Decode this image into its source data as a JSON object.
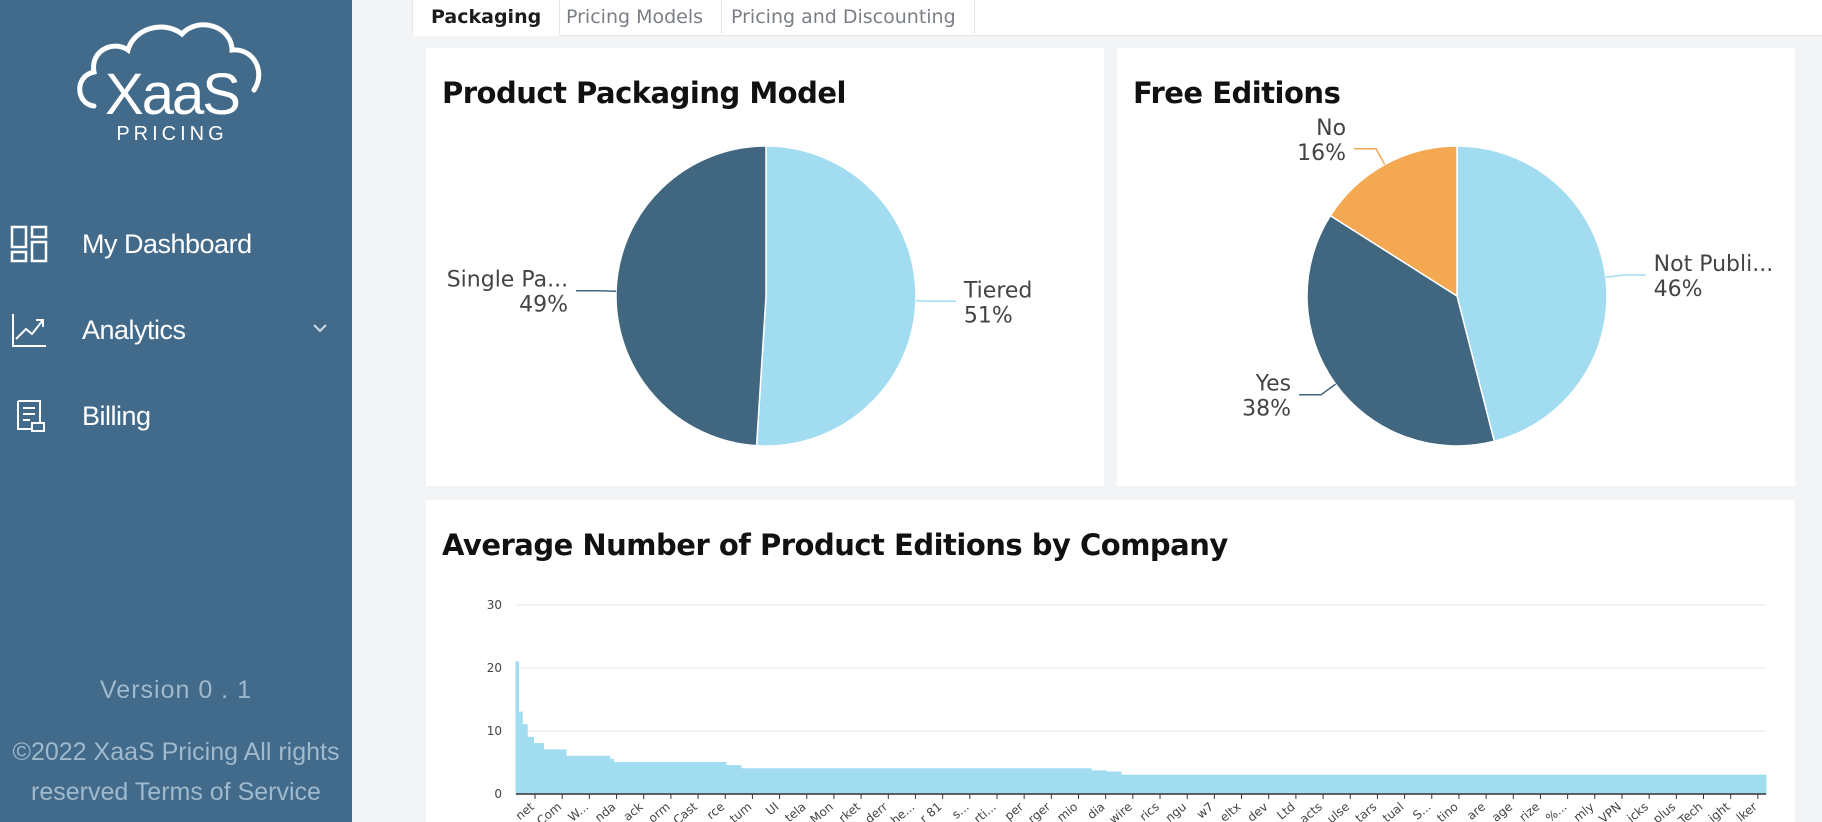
{
  "sidebar": {
    "logo": {
      "word": "XaaS",
      "sub": "PRICING"
    },
    "items": [
      {
        "label": "My Dashboard",
        "icon": "dashboard-icon"
      },
      {
        "label": "Analytics",
        "icon": "analytics-icon"
      },
      {
        "label": "Billing",
        "icon": "billing-icon"
      }
    ],
    "version": "Version 0 . 1",
    "copyright_line1": "©2022 XaaS Pricing All rights",
    "copyright_line2": "reserved Terms of Service"
  },
  "tabs": [
    {
      "label": "Packaging",
      "active": true
    },
    {
      "label": "Pricing Models",
      "active": false
    },
    {
      "label": "Pricing and Discounting",
      "active": false
    }
  ],
  "colors": {
    "sidebar": "#426a8a",
    "light_blue": "#a1dcf0",
    "dark_blue": "#41667f",
    "orange": "#f5a852"
  },
  "cards": {
    "packaging_title": "Product Packaging Model",
    "free_title": "Free Editions",
    "avg_title": "Average Number of Product Editions by Company"
  },
  "chart_data": [
    {
      "type": "pie",
      "title": "Product Packaging Model",
      "slices": [
        {
          "name": "Tiered",
          "label": "Tiered",
          "percent_label": "51%",
          "value": 51
        },
        {
          "name": "Single Package",
          "label": "Single Pa...",
          "percent_label": "49%",
          "value": 49
        }
      ]
    },
    {
      "type": "pie",
      "title": "Free Editions",
      "slices": [
        {
          "name": "Not Published",
          "label": "Not Publi...",
          "percent_label": "46%",
          "value": 46
        },
        {
          "name": "Yes",
          "label": "Yes",
          "percent_label": "38%",
          "value": 38
        },
        {
          "name": "No",
          "label": "No",
          "percent_label": "16%",
          "value": 16
        }
      ]
    },
    {
      "type": "area",
      "title": "Average Number of Product Editions by Company",
      "ylim": [
        0,
        30
      ],
      "yticks": [
        "30",
        "20",
        "10",
        "0"
      ],
      "xtick_labels": [
        "net",
        "Com",
        "W...",
        "nda",
        "ack",
        "orm",
        "Cast",
        "rce",
        "tum",
        "UI",
        "tela",
        "Mon",
        "rket",
        "derr",
        "he...",
        "r 81",
        "s...",
        "rti...",
        "per",
        "rger",
        "mio",
        "dia",
        "wire",
        "rics",
        "ngu",
        "w7",
        "eltx",
        "dev",
        "Ltd",
        "acts",
        "ulse",
        "tars",
        "tual",
        "S...",
        "tino",
        "are",
        "age",
        "rize",
        "%...",
        "mly",
        "VPN",
        "icks",
        "plus",
        "Tech",
        "ight",
        "lker"
      ],
      "segments": [
        {
          "share": 0.002,
          "value": 21
        },
        {
          "share": 0.003,
          "value": 13
        },
        {
          "share": 0.004,
          "value": 11
        },
        {
          "share": 0.005,
          "value": 9
        },
        {
          "share": 0.008,
          "value": 8
        },
        {
          "share": 0.018,
          "value": 7
        },
        {
          "share": 0.035,
          "value": 6
        },
        {
          "share": 0.003,
          "value": 5.5
        },
        {
          "share": 0.09,
          "value": 5
        },
        {
          "share": 0.012,
          "value": 4.5
        },
        {
          "share": 0.28,
          "value": 4
        },
        {
          "share": 0.012,
          "value": 3.7
        },
        {
          "share": 0.012,
          "value": 3.5
        },
        {
          "share": 0.516,
          "value": 3
        }
      ]
    }
  ]
}
